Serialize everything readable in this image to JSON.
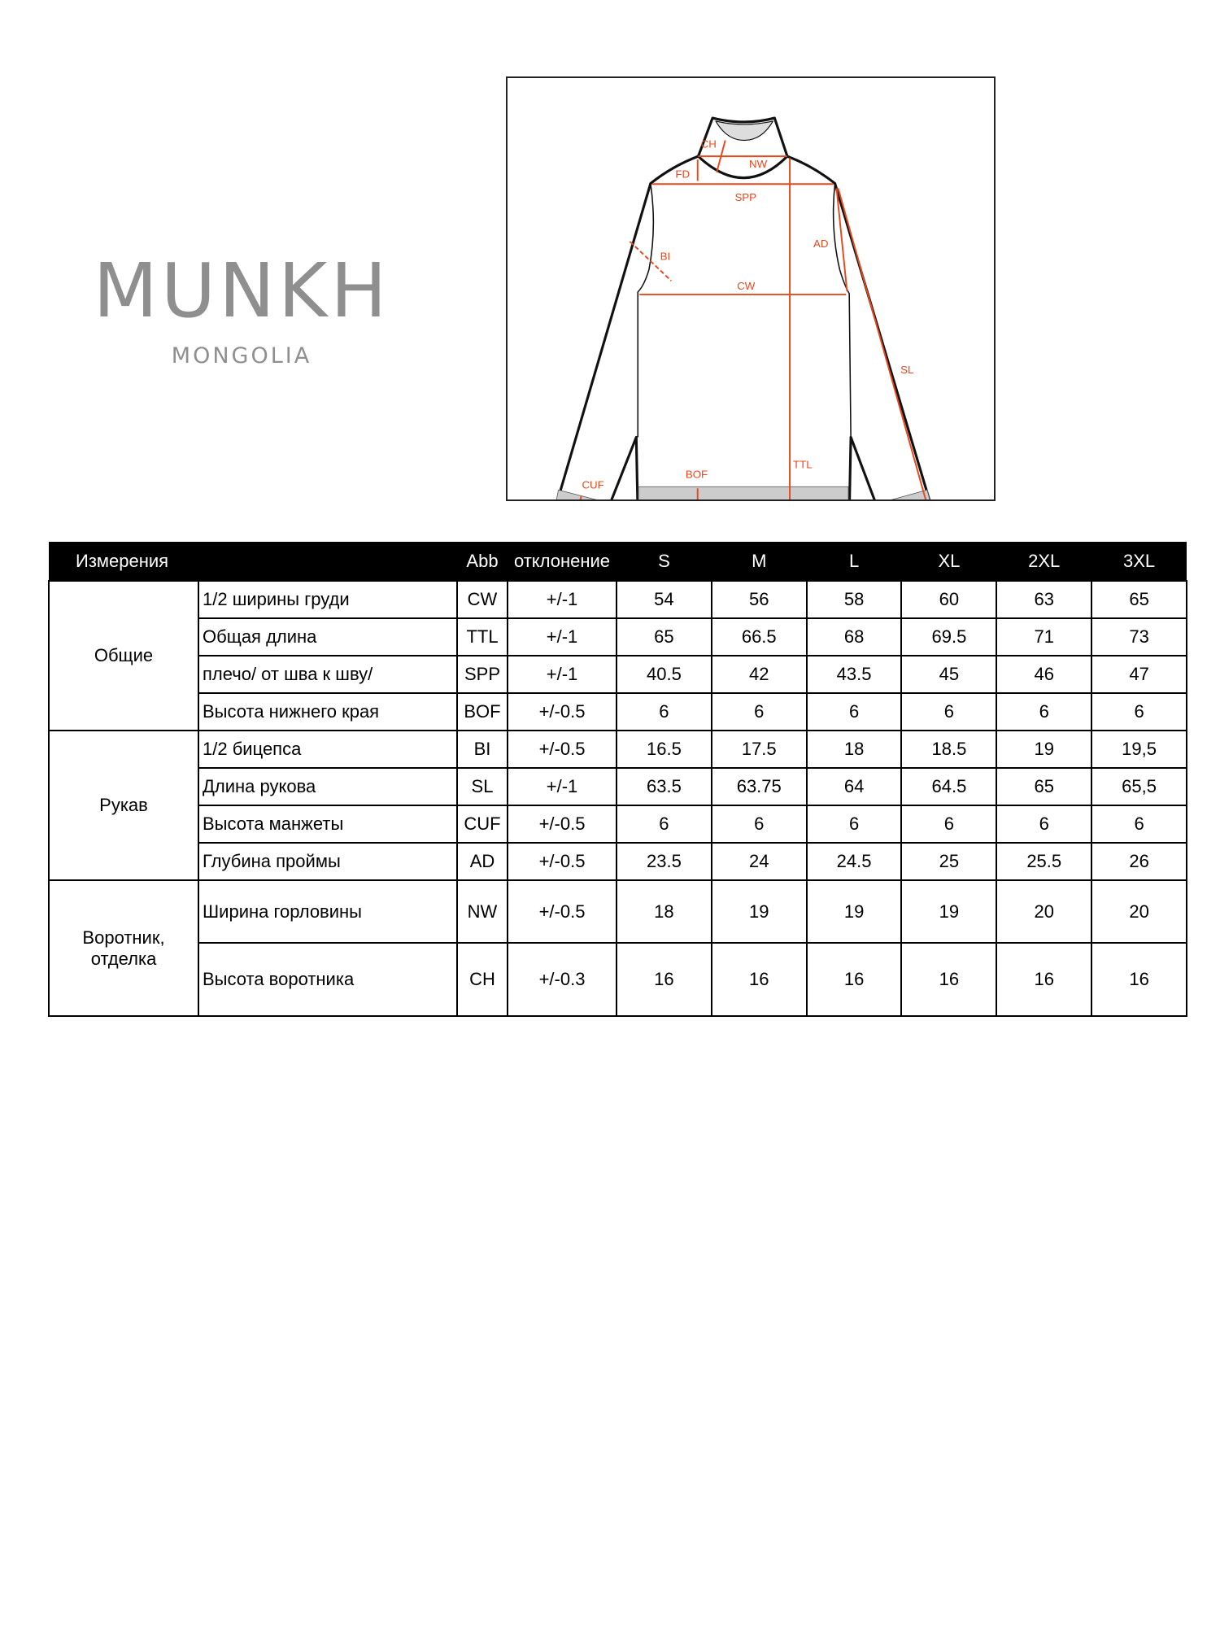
{
  "logo": {
    "brand": "MUNKH",
    "subtitle": "MONGOLIA"
  },
  "diagram": {
    "labels": {
      "ch": "CH",
      "nw": "NW",
      "fd": "FD",
      "spp": "SPP",
      "ad": "AD",
      "bi": "BI",
      "cw": "CW",
      "sl": "SL",
      "ttl": "TTL",
      "bof": "BOF",
      "cuf": "CUF"
    },
    "accent": "#e8481c"
  },
  "table": {
    "headers": [
      "Измерения",
      "Abb",
      "отклонение",
      "S",
      "M",
      "L",
      "XL",
      "2XL",
      "3XL"
    ],
    "groups": [
      {
        "name": "Общие",
        "rows": [
          {
            "name": "1/2 ширины груди",
            "abb": "CW",
            "tol": "+/-1",
            "values": [
              "54",
              "56",
              "58",
              "60",
              "63",
              "65"
            ]
          },
          {
            "name": "Общая длина",
            "abb": "TTL",
            "tol": "+/-1",
            "values": [
              "65",
              "66.5",
              "68",
              "69.5",
              "71",
              "73"
            ]
          },
          {
            "name": "плечо/ от шва к шву/",
            "abb": "SPP",
            "tol": "+/-1",
            "values": [
              "40.5",
              "42",
              "43.5",
              "45",
              "46",
              "47"
            ]
          },
          {
            "name": "Высота нижнего края",
            "abb": "BOF",
            "tol": "+/-0.5",
            "values": [
              "6",
              "6",
              "6",
              "6",
              "6",
              "6"
            ]
          }
        ]
      },
      {
        "name": "Рукав",
        "rows": [
          {
            "name": "1/2 бицепса",
            "abb": "BI",
            "tol": "+/-0.5",
            "values": [
              "16.5",
              "17.5",
              "18",
              "18.5",
              "19",
              "19,5"
            ]
          },
          {
            "name": "Длина рукова",
            "abb": "SL",
            "tol": "+/-1",
            "values": [
              "63.5",
              "63.75",
              "64",
              "64.5",
              "65",
              "65,5"
            ]
          },
          {
            "name": "Высота манжеты",
            "abb": "CUF",
            "tol": "+/-0.5",
            "values": [
              "6",
              "6",
              "6",
              "6",
              "6",
              "6"
            ]
          },
          {
            "name": "Глубина проймы",
            "abb": "AD",
            "tol": "+/-0.5",
            "values": [
              "23.5",
              "24",
              "24.5",
              "25",
              "25.5",
              "26"
            ]
          }
        ]
      },
      {
        "name": "Воротник, отделка",
        "rows": [
          {
            "name": "Ширина горловины",
            "abb": "NW",
            "tol": "+/-0.5",
            "values": [
              "18",
              "19",
              "19",
              "19",
              "20",
              "20"
            ]
          },
          {
            "name": "Высота воротника",
            "abb": "CH",
            "tol": "+/-0.3",
            "values": [
              "16",
              "16",
              "16",
              "16",
              "16",
              "16"
            ]
          }
        ]
      }
    ]
  }
}
